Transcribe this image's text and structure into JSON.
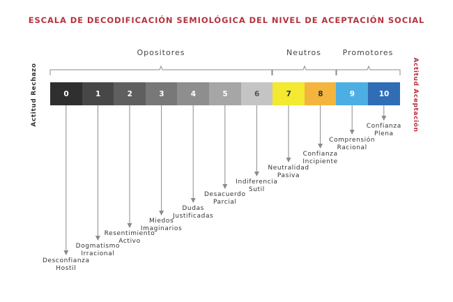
{
  "title": "ESCALA DE DECODIFICACIÓN SEMIOLÓGICA DEL NIVEL DE ACEPTACIÓN SOCIAL",
  "side_left": "Actitud Rechazo",
  "side_right": "Actitud Aceptación",
  "groups": [
    "Opositores",
    "Neutros",
    "Promotores"
  ],
  "scale": [
    {
      "num": "0",
      "label": "Desconfianza\nHostil",
      "color": "#2f2f2f",
      "text_color": "#ffffff"
    },
    {
      "num": "1",
      "label": "Dogmatismo\nIrracional",
      "color": "#474747",
      "text_color": "#ffffff"
    },
    {
      "num": "2",
      "label": "Resentimiento\nActivo",
      "color": "#5f5f5f",
      "text_color": "#ffffff"
    },
    {
      "num": "3",
      "label": "Miedos\nImaginarios",
      "color": "#787878",
      "text_color": "#ffffff"
    },
    {
      "num": "4",
      "label": "Dudas\nJustificadas",
      "color": "#8e8e8e",
      "text_color": "#ffffff"
    },
    {
      "num": "5",
      "label": "Desacuerdo\nParcial",
      "color": "#a6a6a6",
      "text_color": "#ffffff"
    },
    {
      "num": "6",
      "label": "Indiferencia\nSutil",
      "color": "#c4c4c4",
      "text_color": "#555555"
    },
    {
      "num": "7",
      "label": "Neutralidad\nPasiva",
      "color": "#f2e930",
      "text_color": "#333333"
    },
    {
      "num": "8",
      "label": "Confianza\nIncipiente",
      "color": "#f4b53f",
      "text_color": "#333333"
    },
    {
      "num": "9",
      "label": "Comprensión\nRacional",
      "color": "#4daee3",
      "text_color": "#ffffff"
    },
    {
      "num": "10",
      "label": "Confianza\nPlena",
      "color": "#2f6db5",
      "text_color": "#ffffff"
    }
  ]
}
